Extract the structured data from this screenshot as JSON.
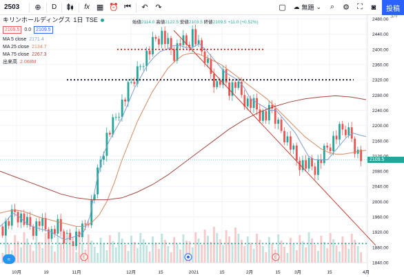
{
  "toolbar": {
    "symbol": "2503",
    "timeframe": "D",
    "candle_icon": "candles-icon",
    "indicator_label": "fx",
    "layout_label": "無題",
    "post_label": "投稿"
  },
  "legend": {
    "title": "キリンホールディングス",
    "interval": "1日",
    "exchange": "TSE",
    "price_box_left": "2109.5",
    "price_change": "0.0",
    "price_box_right": "2109.5",
    "ohlc_open_label": "始値",
    "ohlc_open": "2114.0",
    "ohlc_high_label": "高値",
    "ohlc_high": "2122.5",
    "ohlc_low_label": "安値",
    "ohlc_low": "2103.5",
    "ohlc_close_label": "終値",
    "ohlc_close": "2109.5",
    "ohlc_change": "+11.0 (+0.52%)",
    "ma5_label": "MA 5 close",
    "ma5_value": "2171.4",
    "ma25_label": "MA 25 close",
    "ma25_value": "2134.7",
    "ma75_label": "MA 75 close",
    "ma75_value": "2267.3",
    "volume_label": "出来高",
    "volume_value": "2.068M"
  },
  "axis": {
    "currency": "JPY",
    "price_tag": "2109.5",
    "y_ticks": [
      "2480.00",
      "2440.00",
      "2400.00",
      "2360.00",
      "2320.00",
      "2280.00",
      "2240.00",
      "2200.00",
      "2160.00",
      "2120.00",
      "2080.00",
      "2040.00",
      "2000.00",
      "1960.00",
      "1920.00",
      "1880.00",
      "1840.00"
    ],
    "x_ticks": [
      "10月",
      "19",
      "11月",
      "12月",
      "15",
      "2021",
      "15",
      "2月",
      "15",
      "3月",
      "15",
      "4月"
    ]
  },
  "markers": {
    "earnings_letter": "E"
  },
  "colors": {
    "up": "#26a69a",
    "down": "#ef5350",
    "ma5": "#7e9bd0",
    "ma25": "#d4875f",
    "ma75": "#a0443d",
    "trend": "#c0392b",
    "accent": "#2962ff"
  },
  "chart_data": {
    "type": "candlestick",
    "ylim": [
      1840,
      2490
    ],
    "series": [
      {
        "name": "MA 5 close",
        "values": [
          1935,
          1950,
          1970,
          1960,
          1945,
          1935,
          1930,
          1925,
          1920,
          1910,
          1900,
          1905,
          1910,
          1920,
          1960,
          2050,
          2120,
          2160,
          2190,
          2220,
          2260,
          2300,
          2330,
          2360,
          2380,
          2395,
          2400,
          2410,
          2410,
          2405,
          2405,
          2415,
          2400,
          2380,
          2360,
          2340,
          2330,
          2320,
          2300,
          2270,
          2260,
          2250,
          2240,
          2240,
          2220,
          2200,
          2180,
          2150,
          2120,
          2110,
          2110,
          2110,
          2130,
          2150,
          2170,
          2180,
          2175,
          2171
        ]
      },
      {
        "name": "MA 25 close",
        "values": [
          1970,
          1975,
          1978,
          1975,
          1968,
          1960,
          1955,
          1950,
          1945,
          1940,
          1935,
          1935,
          1945,
          1965,
          2000,
          2050,
          2110,
          2160,
          2210,
          2250,
          2290,
          2320,
          2350,
          2370,
          2385,
          2390,
          2388,
          2380,
          2370,
          2360,
          2345,
          2330,
          2315,
          2300,
          2285,
          2270,
          2250,
          2230,
          2210,
          2190,
          2170,
          2155,
          2140,
          2130,
          2125,
          2125,
          2128,
          2132,
          2135
        ]
      },
      {
        "name": "MA 75 close",
        "values": [
          2080,
          2065,
          2050,
          2035,
          2020,
          2010,
          2005,
          2005,
          2010,
          2025,
          2045,
          2070,
          2100,
          2130,
          2160,
          2190,
          2215,
          2235,
          2250,
          2262,
          2270,
          2275,
          2278,
          2275,
          2268
        ]
      }
    ],
    "volume": "2.068M",
    "last": 2109.5
  }
}
